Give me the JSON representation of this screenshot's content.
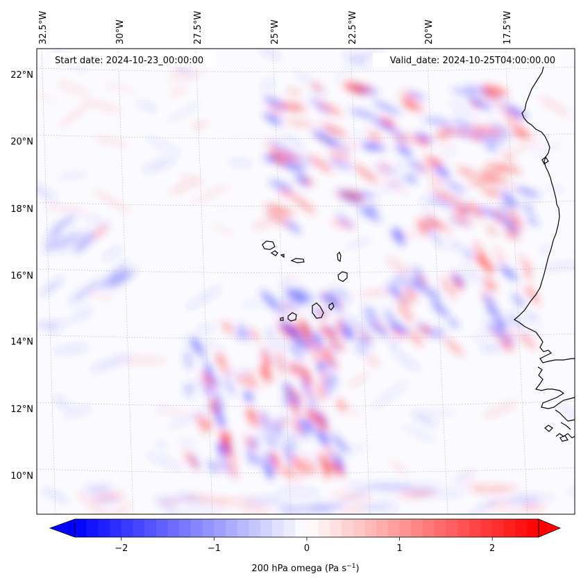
{
  "header": {
    "start_date": "Start date: 2024-10-23_00:00:00",
    "valid_date": "Valid_date: 2024-10-25T04:00:00.00"
  },
  "map": {
    "type": "contour-map",
    "projection": "Lambert conformal",
    "lon_labels": [
      "32.5°W",
      "30°W",
      "27.5°W",
      "25°W",
      "22.5°W",
      "20°W",
      "17.5°W"
    ],
    "lat_labels": [
      "22°N",
      "20°N",
      "18°N",
      "16°N",
      "14°N",
      "12°N",
      "10°N"
    ],
    "gridlines": true,
    "features": [
      "cape-verde-islands",
      "west-africa-coastline"
    ]
  },
  "colorbar": {
    "label_prefix": "200 hPa omega (Pa s",
    "label_exponent": "−1",
    "label_suffix": ")",
    "ticks": [
      "−2",
      "−1",
      "0",
      "1",
      "2"
    ],
    "tick_values": [
      -2,
      -1,
      0,
      1,
      2
    ],
    "range": [
      -2.5,
      2.5
    ],
    "colormap": "bwr",
    "extend": "both",
    "low_color": "#0000ff",
    "mid_color": "#ffffff",
    "high_color": "#ff0000"
  }
}
